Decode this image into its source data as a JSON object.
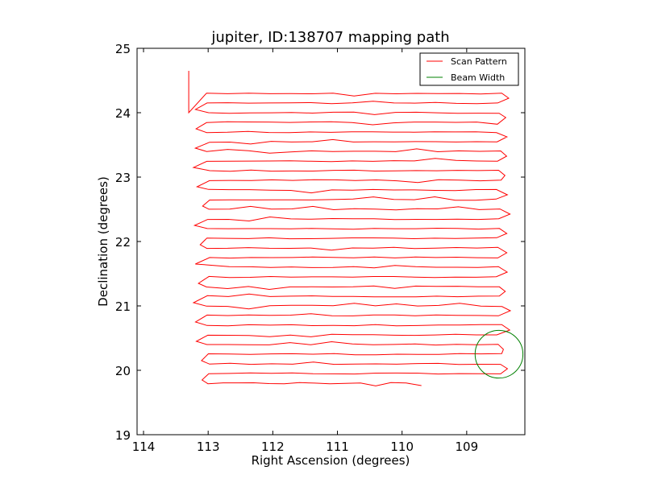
{
  "chart_data": {
    "type": "line",
    "title": "jupiter, ID:138707 mapping path",
    "xlabel": "Right Ascension (degrees)",
    "ylabel": "Declination (degrees)",
    "xlim": [
      114.1,
      108.1
    ],
    "ylim": [
      19,
      25
    ],
    "xticks": [
      114,
      113,
      112,
      111,
      110,
      109
    ],
    "yticks": [
      19,
      20,
      21,
      22,
      23,
      24,
      25
    ],
    "legend_position": "top-right",
    "series": [
      {
        "name": "Scan Pattern",
        "color": "#ff0000",
        "style": "raster",
        "rows_dec": [
          24.3,
          24.15,
          24.0,
          23.85,
          23.7,
          23.55,
          23.4,
          23.25,
          23.1,
          22.95,
          22.8,
          22.65,
          22.5,
          22.35,
          22.2,
          22.05,
          21.9,
          21.75,
          21.6,
          21.45,
          21.3,
          21.15,
          21.0,
          20.85,
          20.7,
          20.55,
          20.4,
          20.25,
          20.1,
          19.95,
          19.8
        ],
        "ra_left": 113.0,
        "ra_right": 108.5,
        "start_point": [
          113.3,
          24.65
        ],
        "end_point": [
          109.7,
          19.8
        ]
      },
      {
        "name": "Beam Width",
        "color": "#008000",
        "style": "circle",
        "center": [
          108.5,
          20.25
        ],
        "radius_deg": 0.37
      }
    ]
  }
}
